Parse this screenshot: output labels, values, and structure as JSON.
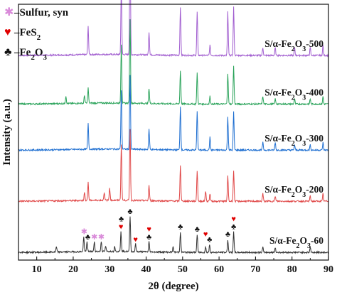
{
  "chart_data": {
    "type": "line",
    "xlabel": "2θ (degree)",
    "ylabel": "Intensity (a.u.)",
    "xlim": [
      5,
      90
    ],
    "x_ticks": [
      10,
      20,
      30,
      40,
      50,
      60,
      70,
      80,
      90
    ],
    "x_tick_labels": [
      "10",
      "20",
      "30",
      "40",
      "50",
      "60",
      "70",
      "80",
      "90"
    ],
    "legend": [
      {
        "symbol": "✱",
        "color": "#d98ad9",
        "prefix": "–",
        "text": "Sulfur, syn",
        "subscripts": []
      },
      {
        "symbol": "♥",
        "color": "#e00000",
        "prefix": "–",
        "text": "FeS2",
        "subscripts": [
          {
            "base": "FeS",
            "sub": "2",
            "tail": ""
          }
        ]
      },
      {
        "symbol": "♣",
        "color": "#111111",
        "prefix": "–",
        "text": "Fe2O3",
        "subscripts": [
          {
            "base": "Fe",
            "sub": "2",
            "tail": "O"
          },
          {
            "base": "",
            "sub": "3",
            "tail": ""
          }
        ]
      }
    ],
    "series": [
      {
        "name": "S/α-Fe2O3-500",
        "color": "#a25fd0",
        "baseline": 0.8,
        "peaks": [
          [
            24.1,
            0.11
          ],
          [
            33.2,
            0.27
          ],
          [
            35.6,
            0.44
          ],
          [
            40.8,
            0.09
          ],
          [
            49.4,
            0.19
          ],
          [
            54.0,
            0.17
          ],
          [
            57.5,
            0.04
          ],
          [
            62.4,
            0.17
          ],
          [
            64.0,
            0.19
          ],
          [
            72.0,
            0.03
          ],
          [
            75.4,
            0.03
          ],
          [
            80.7,
            0.03
          ],
          [
            85.0,
            0.03
          ],
          [
            88.5,
            0.04
          ]
        ]
      },
      {
        "name": "S/α-Fe2O3-400",
        "color": "#2aa35a",
        "baseline": 0.61,
        "peaks": [
          [
            18.0,
            0.03
          ],
          [
            23.1,
            0.03
          ],
          [
            24.1,
            0.06
          ],
          [
            33.2,
            0.23
          ],
          [
            35.6,
            0.33
          ],
          [
            40.8,
            0.06
          ],
          [
            49.4,
            0.13
          ],
          [
            54.0,
            0.12
          ],
          [
            57.5,
            0.03
          ],
          [
            62.4,
            0.12
          ],
          [
            64.0,
            0.15
          ],
          [
            72.0,
            0.03
          ],
          [
            75.4,
            0.02
          ],
          [
            80.7,
            0.02
          ],
          [
            85.0,
            0.02
          ],
          [
            88.5,
            0.03
          ]
        ]
      },
      {
        "name": "S/α-Fe2O3-300",
        "color": "#1f6fd1",
        "baseline": 0.43,
        "peaks": [
          [
            24.1,
            0.1
          ],
          [
            33.2,
            0.23
          ],
          [
            35.6,
            0.29
          ],
          [
            40.8,
            0.08
          ],
          [
            49.4,
            0.17
          ],
          [
            54.0,
            0.15
          ],
          [
            57.5,
            0.05
          ],
          [
            62.4,
            0.13
          ],
          [
            64.0,
            0.15
          ],
          [
            72.0,
            0.03
          ],
          [
            75.4,
            0.03
          ],
          [
            80.7,
            0.02
          ],
          [
            85.0,
            0.02
          ],
          [
            88.5,
            0.03
          ]
        ]
      },
      {
        "name": "S/α-Fe2O3-200",
        "color": "#e04848",
        "baseline": 0.23,
        "peaks": [
          [
            23.1,
            0.03
          ],
          [
            24.1,
            0.07
          ],
          [
            28.5,
            0.03
          ],
          [
            30.0,
            0.05
          ],
          [
            33.2,
            0.22
          ],
          [
            35.6,
            0.28
          ],
          [
            40.8,
            0.06
          ],
          [
            49.4,
            0.14
          ],
          [
            54.0,
            0.12
          ],
          [
            56.3,
            0.04
          ],
          [
            57.5,
            0.03
          ],
          [
            62.4,
            0.1
          ],
          [
            64.0,
            0.12
          ],
          [
            72.0,
            0.03
          ],
          [
            75.4,
            0.02
          ],
          [
            85.0,
            0.02
          ],
          [
            88.5,
            0.03
          ]
        ]
      },
      {
        "name": "S/α-Fe2O3-60",
        "color": "#333333",
        "baseline": 0.03,
        "peaks": [
          [
            15.4,
            0.02
          ],
          [
            22.9,
            0.06
          ],
          [
            23.8,
            0.04
          ],
          [
            25.8,
            0.04
          ],
          [
            27.7,
            0.04
          ],
          [
            28.9,
            0.02
          ],
          [
            31.4,
            0.02
          ],
          [
            33.1,
            0.08
          ],
          [
            35.6,
            0.14
          ],
          [
            37.1,
            0.03
          ],
          [
            40.8,
            0.04
          ],
          [
            47.4,
            0.02
          ],
          [
            49.4,
            0.08
          ],
          [
            54.0,
            0.07
          ],
          [
            56.3,
            0.02
          ],
          [
            57.4,
            0.03
          ],
          [
            62.4,
            0.05
          ],
          [
            64.0,
            0.08
          ],
          [
            72.0,
            0.02
          ],
          [
            75.4,
            0.02
          ],
          [
            85.0,
            0.02
          ]
        ]
      }
    ],
    "markers": [
      {
        "x": 23.0,
        "series": 4,
        "symbol": "✱",
        "color": "#d98ad9"
      },
      {
        "x": 24.0,
        "series": 4,
        "symbol": "♣",
        "color": "#111111"
      },
      {
        "x": 25.8,
        "series": 4,
        "symbol": "✱",
        "color": "#d98ad9"
      },
      {
        "x": 27.7,
        "series": 4,
        "symbol": "✱",
        "color": "#d98ad9"
      },
      {
        "x": 33.1,
        "series": 4,
        "symbol": "♥",
        "color": "#e00000"
      },
      {
        "x": 33.2,
        "series": 4,
        "symbol": "♣",
        "color": "#111111",
        "stack": 1
      },
      {
        "x": 35.6,
        "series": 4,
        "symbol": "♣",
        "color": "#111111"
      },
      {
        "x": 37.1,
        "series": 4,
        "symbol": "♥",
        "color": "#e00000"
      },
      {
        "x": 40.8,
        "series": 4,
        "symbol": "♥",
        "color": "#e00000",
        "stack": 1
      },
      {
        "x": 40.8,
        "series": 4,
        "symbol": "♣",
        "color": "#111111"
      },
      {
        "x": 49.4,
        "series": 4,
        "symbol": "♣",
        "color": "#111111"
      },
      {
        "x": 54.0,
        "series": 4,
        "symbol": "♣",
        "color": "#111111"
      },
      {
        "x": 56.3,
        "series": 4,
        "symbol": "♥",
        "color": "#e00000",
        "stack": 1
      },
      {
        "x": 57.4,
        "series": 4,
        "symbol": "♣",
        "color": "#111111"
      },
      {
        "x": 62.4,
        "series": 4,
        "symbol": "♣",
        "color": "#111111"
      },
      {
        "x": 64.0,
        "series": 4,
        "symbol": "♥",
        "color": "#e00000",
        "stack": 1
      },
      {
        "x": 64.0,
        "series": 4,
        "symbol": "♣",
        "color": "#111111"
      }
    ],
    "grid": false,
    "legend_position": "top-left",
    "y_ticks": "none"
  }
}
